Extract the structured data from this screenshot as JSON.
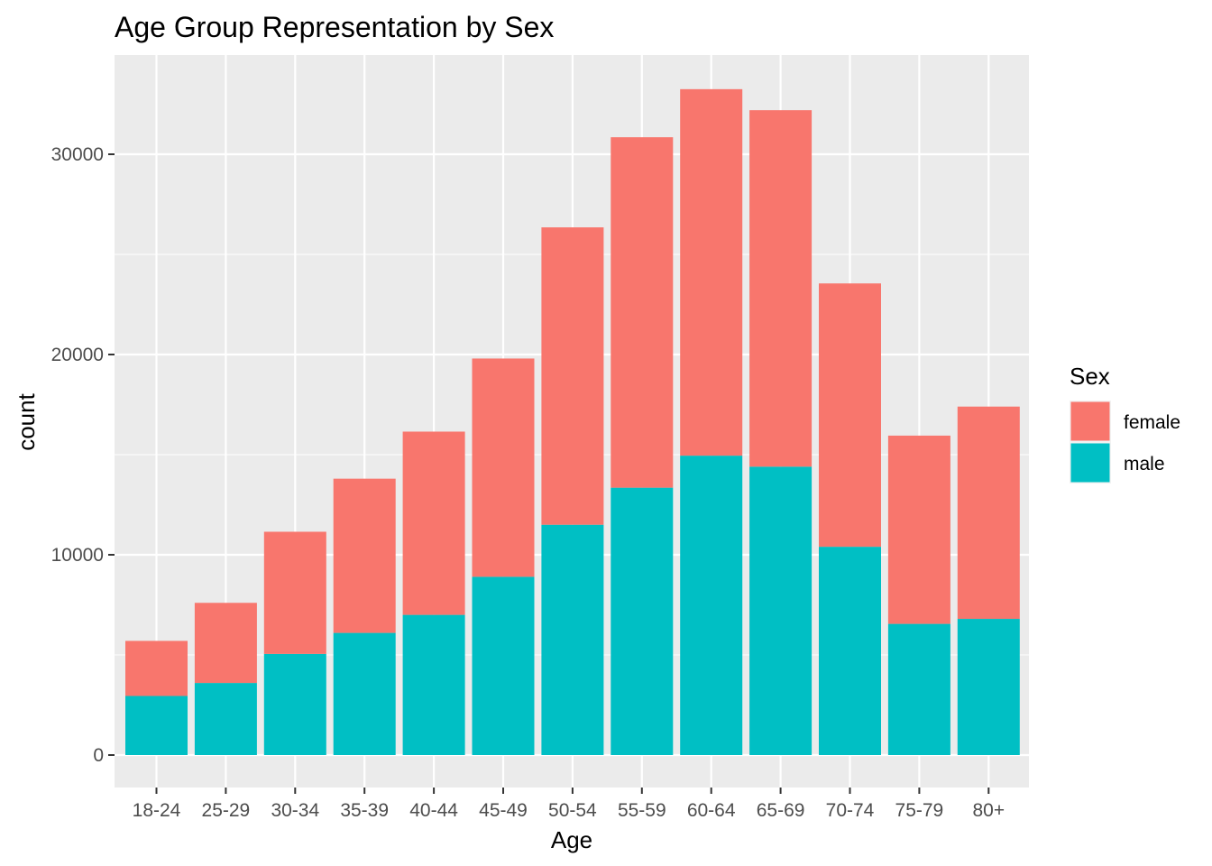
{
  "chart_data": {
    "type": "bar",
    "stacked": true,
    "title": "Age Group Representation by Sex",
    "xlabel": "Age",
    "ylabel": "count",
    "categories": [
      "18-24",
      "25-29",
      "30-34",
      "35-39",
      "40-44",
      "45-49",
      "50-54",
      "55-59",
      "60-64",
      "65-69",
      "70-74",
      "75-79",
      "80+"
    ],
    "series": [
      {
        "name": "male",
        "color": "#00BFC4",
        "values": [
          2950,
          3600,
          5050,
          6100,
          7000,
          8900,
          11500,
          13350,
          14950,
          14400,
          10400,
          6550,
          6800
        ]
      },
      {
        "name": "female",
        "color": "#F8766D",
        "values": [
          2750,
          4000,
          6100,
          7700,
          9150,
          10900,
          14850,
          17500,
          18300,
          17800,
          13150,
          9400,
          10600
        ]
      }
    ],
    "yticks": [
      0,
      10000,
      20000,
      30000
    ],
    "ytick_labels": [
      "0",
      "10000",
      "20000",
      "30000"
    ],
    "ylim": [
      -1500,
      35000
    ],
    "grid": true,
    "legend": {
      "title": "Sex",
      "position": "right",
      "entries": [
        {
          "label": "female",
          "color": "#F8766D"
        },
        {
          "label": "male",
          "color": "#00BFC4"
        }
      ]
    },
    "panel_background": "#EBEBEB",
    "grid_color": "#FFFFFF"
  }
}
